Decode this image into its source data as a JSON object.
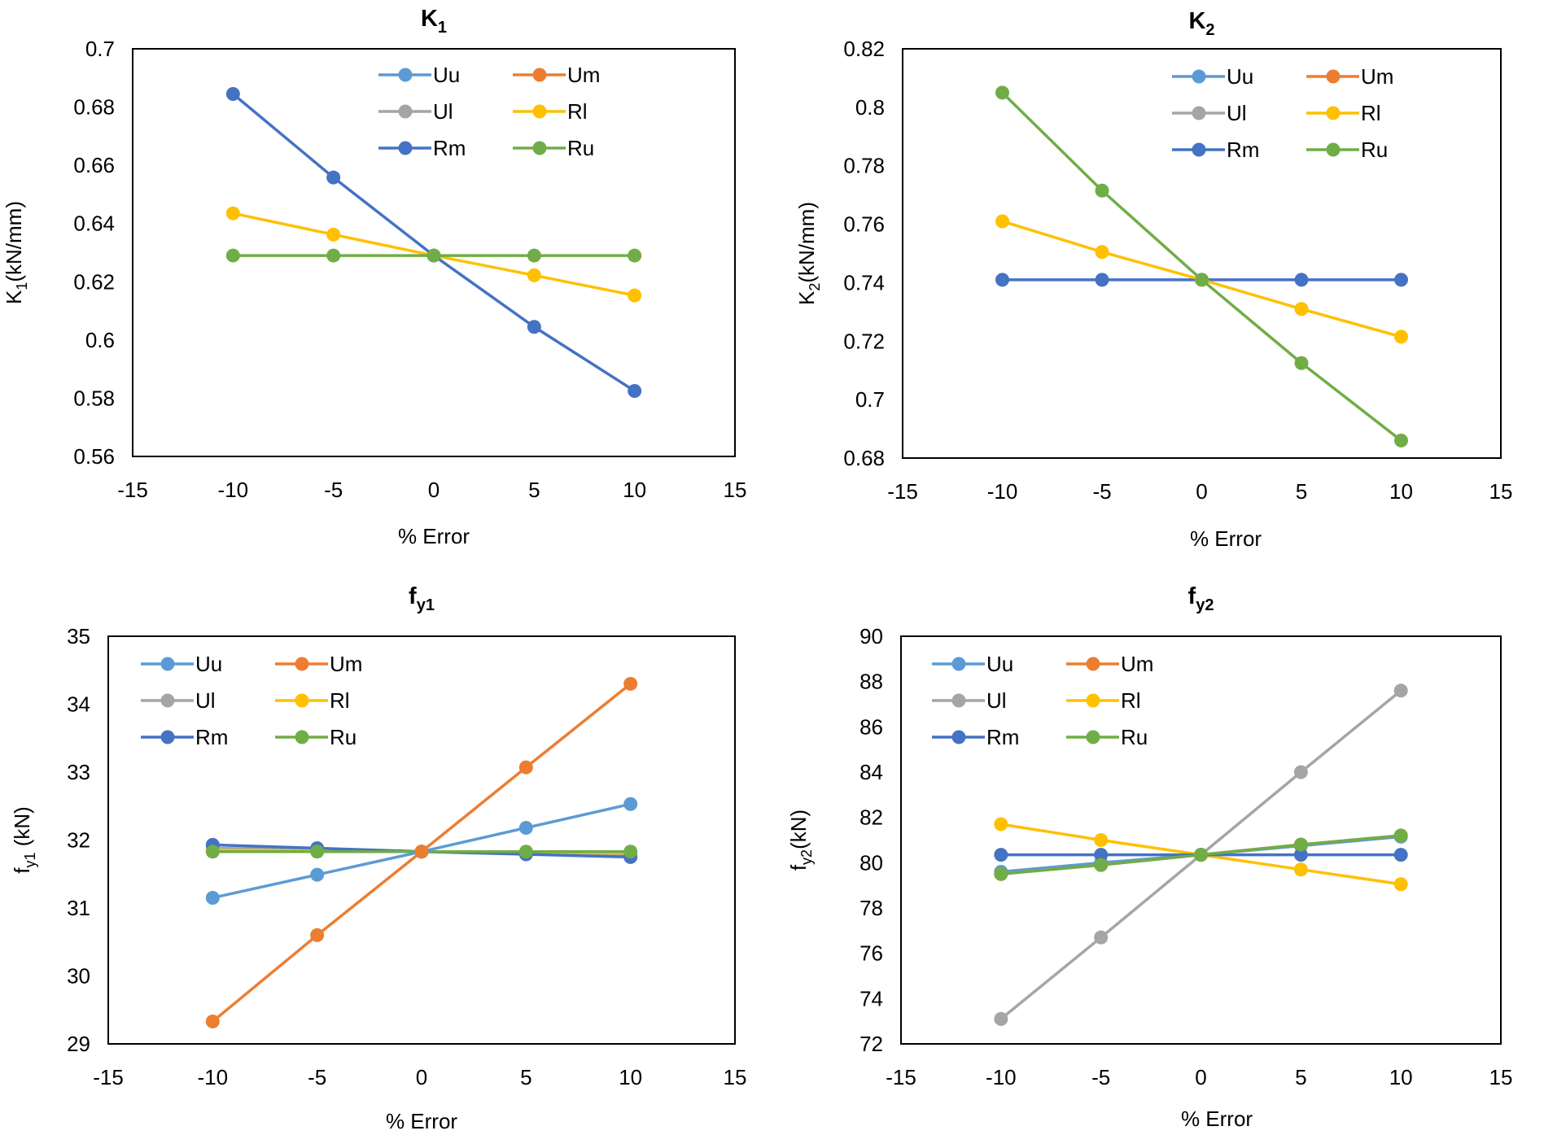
{
  "colors": {
    "Uu": "#5B9BD5",
    "Um": "#ED7D31",
    "Ul": "#A5A5A5",
    "Rl": "#FFC000",
    "Rm": "#4472C4",
    "Ru": "#70AD47"
  },
  "chart_data": [
    {
      "type": "line",
      "title": "K",
      "title_sub": "1",
      "xlabel": "% Error",
      "ylabel": "K",
      "ylabel_sub": "1",
      "ylabel_rest": "(kN/mm)",
      "xlim": [
        -15,
        15
      ],
      "ylim": [
        0.56,
        0.7
      ],
      "xticks": [
        "-15",
        "-10",
        "-5",
        "0",
        "5",
        "10",
        "15"
      ],
      "yticks": [
        "0.56",
        "0.58",
        "0.6",
        "0.62",
        "0.64",
        "0.66",
        "0.68",
        "0.7"
      ],
      "legend": [
        "Uu",
        "Um",
        "Ul",
        "Rl",
        "Rm",
        "Ru"
      ],
      "x": [
        -10,
        -5,
        0,
        5,
        10
      ],
      "series": [
        {
          "name": "Rl",
          "values": [
            0.6435,
            0.6362,
            0.629,
            0.6222,
            0.6153
          ]
        },
        {
          "name": "Rm",
          "values": [
            0.6845,
            0.6558,
            0.629,
            0.6045,
            0.5825
          ]
        },
        {
          "name": "Ru",
          "values": [
            0.629,
            0.629,
            0.629,
            0.629,
            0.629
          ]
        }
      ]
    },
    {
      "type": "line",
      "title": "K",
      "title_sub": "2",
      "xlabel": "% Error",
      "ylabel": "K",
      "ylabel_sub": "2",
      "ylabel_rest": "(kN/mm)",
      "xlim": [
        -15,
        15
      ],
      "ylim": [
        0.68,
        0.82
      ],
      "xticks": [
        "-15",
        "-10",
        "-5",
        "0",
        "5",
        "10",
        "15"
      ],
      "yticks": [
        "0.68",
        "0.7",
        "0.72",
        "0.74",
        "0.76",
        "0.78",
        "0.8",
        "0.82"
      ],
      "legend": [
        "Uu",
        "Um",
        "Ul",
        "Rl",
        "Rm",
        "Ru"
      ],
      "x": [
        -10,
        -5,
        0,
        5,
        10
      ],
      "series": [
        {
          "name": "Rm",
          "values": [
            0.741,
            0.741,
            0.741,
            0.741,
            0.741
          ]
        },
        {
          "name": "Rl",
          "values": [
            0.761,
            0.7505,
            0.741,
            0.731,
            0.7215
          ]
        },
        {
          "name": "Ru",
          "values": [
            0.805,
            0.7715,
            0.741,
            0.7125,
            0.686
          ]
        }
      ]
    },
    {
      "type": "line",
      "title": "f",
      "title_sub": "y1",
      "xlabel": "% Error",
      "ylabel": "f",
      "ylabel_sub": "y1",
      "ylabel_rest": " (kN)",
      "xlim": [
        -15,
        15
      ],
      "ylim": [
        29,
        35
      ],
      "xticks": [
        "-15",
        "-10",
        "-5",
        "0",
        "5",
        "10",
        "15"
      ],
      "yticks": [
        "29",
        "30",
        "31",
        "32",
        "33",
        "34",
        "35"
      ],
      "legend": [
        "Uu",
        "Um",
        "Ul",
        "Rl",
        "Rm",
        "Ru"
      ],
      "x": [
        -10,
        -5,
        0,
        5,
        10
      ],
      "series": [
        {
          "name": "Ul",
          "values": [
            31.88,
            31.86,
            31.83,
            31.81,
            31.79
          ]
        },
        {
          "name": "Rl",
          "values": [
            31.85,
            31.84,
            31.83,
            31.82,
            31.81
          ]
        },
        {
          "name": "Rm",
          "values": [
            31.93,
            31.88,
            31.83,
            31.79,
            31.75
          ]
        },
        {
          "name": "Ru",
          "values": [
            31.83,
            31.83,
            31.83,
            31.83,
            31.83
          ]
        },
        {
          "name": "Uu",
          "values": [
            31.15,
            31.49,
            31.83,
            32.18,
            32.53
          ]
        },
        {
          "name": "Um",
          "values": [
            29.33,
            30.6,
            31.83,
            33.07,
            34.3
          ]
        }
      ]
    },
    {
      "type": "line",
      "title": "f",
      "title_sub": "y2",
      "xlabel": "% Error",
      "ylabel": "f",
      "ylabel_sub": "y2",
      "ylabel_rest": "(kN)",
      "xlim": [
        -15,
        15
      ],
      "ylim": [
        72,
        90
      ],
      "xticks": [
        "-15",
        "-10",
        "-5",
        "0",
        "5",
        "10",
        "15"
      ],
      "yticks": [
        "72",
        "74",
        "76",
        "78",
        "80",
        "82",
        "84",
        "86",
        "88",
        "90"
      ],
      "legend": [
        "Uu",
        "Um",
        "Ul",
        "Rl",
        "Rm",
        "Ru"
      ],
      "x": [
        -10,
        -5,
        0,
        5,
        10
      ],
      "series": [
        {
          "name": "Uu",
          "values": [
            79.6,
            80.0,
            80.35,
            80.75,
            81.15
          ]
        },
        {
          "name": "Um",
          "values": [
            79.5,
            79.9,
            80.35,
            80.8,
            81.2
          ]
        },
        {
          "name": "Ul",
          "values": [
            73.1,
            76.7,
            80.35,
            84.0,
            87.6
          ]
        },
        {
          "name": "Rl",
          "values": [
            81.7,
            81.0,
            80.35,
            79.7,
            79.05
          ]
        },
        {
          "name": "Rm",
          "values": [
            80.35,
            80.35,
            80.35,
            80.35,
            80.35
          ]
        },
        {
          "name": "Ru",
          "values": [
            79.5,
            79.9,
            80.35,
            80.8,
            81.2
          ]
        }
      ]
    }
  ]
}
